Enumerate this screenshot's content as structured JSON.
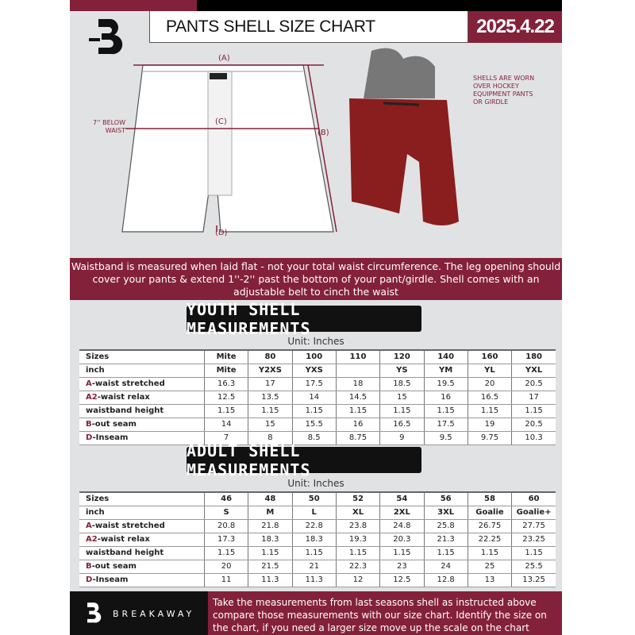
{
  "header": {
    "title": "PANTS SHELL SIZE CHART",
    "date": "2025.4.22"
  },
  "diagram": {
    "label_a": "(A)",
    "label_b": "(B)",
    "label_c": "(C)",
    "label_d": "(D)",
    "waist_note": "7'' BELOW WAIST",
    "shell_note": "SHELLS ARE WORN OVER HOCKEY EQUIPMENT PANTS OR GIRDLE"
  },
  "banner": "Waistband is measured when laid flat - not your total waist circumference. The leg opening should cover your pants & extend 1''-2'' past the bottom of your pant/girdle. Shell comes with an adjustable belt to cinch the waist",
  "colors": {
    "accent": "#84213a",
    "dark": "#111111",
    "background": "#e1e2e4"
  },
  "youth": {
    "title": "YOUTH SHELL MEASUREMENTS",
    "unit": "Unit: Inches",
    "rows": [
      {
        "p": "",
        "l": "Sizes",
        "v": [
          "Mite",
          "80",
          "100",
          "110",
          "120",
          "140",
          "160",
          "180"
        ]
      },
      {
        "p": "",
        "l": "inch",
        "v": [
          "Mite",
          "Y2XS",
          "YXS",
          "",
          "YS",
          "YM",
          "YL",
          "YXL"
        ]
      },
      {
        "p": "A",
        "l": "-waist stretched",
        "v": [
          "16.3",
          "17",
          "17.5",
          "18",
          "18.5",
          "19.5",
          "20",
          "20.5"
        ]
      },
      {
        "p": "A2",
        "l": "-waist relax",
        "v": [
          "12.5",
          "13.5",
          "14",
          "14.5",
          "15",
          "16",
          "16.5",
          "17"
        ]
      },
      {
        "p": "",
        "l": "waistband height",
        "v": [
          "1.15",
          "1.15",
          "1.15",
          "1.15",
          "1.15",
          "1.15",
          "1.15",
          "1.15"
        ]
      },
      {
        "p": "B",
        "l": "-out seam",
        "v": [
          "14",
          "15",
          "15.5",
          "16",
          "16.5",
          "17.5",
          "19",
          "20.5"
        ]
      },
      {
        "p": "D",
        "l": "-Inseam",
        "v": [
          "7",
          "8",
          "8.5",
          "8.75",
          "9",
          "9.5",
          "9.75",
          "10.3"
        ]
      }
    ]
  },
  "adult": {
    "title": "ADULT SHELL MEASUREMENTS",
    "unit": "Unit: Inches",
    "rows": [
      {
        "p": "",
        "l": "Sizes",
        "v": [
          "46",
          "48",
          "50",
          "52",
          "54",
          "56",
          "58",
          "60"
        ]
      },
      {
        "p": "",
        "l": "inch",
        "v": [
          "S",
          "M",
          "L",
          "XL",
          "2XL",
          "3XL",
          "Goalie",
          "Goalie+"
        ]
      },
      {
        "p": "A",
        "l": "-waist stretched",
        "v": [
          "20.8",
          "21.8",
          "22.8",
          "23.8",
          "24.8",
          "25.8",
          "26.75",
          "27.75"
        ]
      },
      {
        "p": "A2",
        "l": "-waist relax",
        "v": [
          "17.3",
          "18.3",
          "18.3",
          "19.3",
          "20.3",
          "21.3",
          "22.25",
          "23.25"
        ]
      },
      {
        "p": "",
        "l": "waistband height",
        "v": [
          "1.15",
          "1.15",
          "1.15",
          "1.15",
          "1.15",
          "1.15",
          "1.15",
          "1.15"
        ]
      },
      {
        "p": "B",
        "l": "-out seam",
        "v": [
          "20",
          "21.5",
          "21",
          "22.3",
          "23",
          "24",
          "25",
          "25.5"
        ]
      },
      {
        "p": "D",
        "l": "-Inseam",
        "v": [
          "11",
          "11.3",
          "11.3",
          "12",
          "12.5",
          "12.8",
          "13",
          "13.25"
        ]
      }
    ]
  },
  "footer": {
    "brand": "BREAKAWAY",
    "text": "Take the measurements from last seasons shell as instructed above compare those measurements  with our size chart. Identify the size on the chart, if you need a larger size move up the scale on the chart"
  }
}
